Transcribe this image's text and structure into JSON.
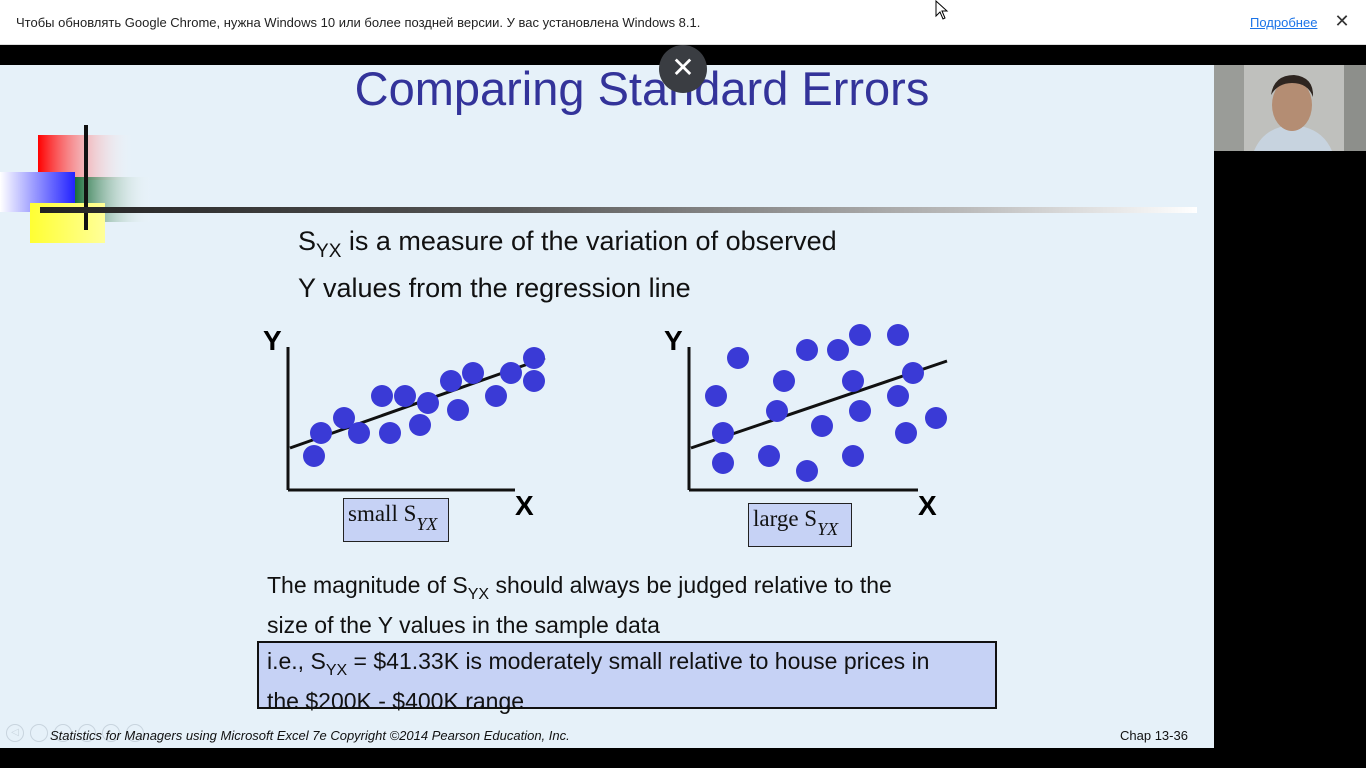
{
  "browser": {
    "infobar_message": "Чтобы обновлять Google Chrome, нужна Windows 10 или более поздней версии. У вас установлена Windows 8.1.",
    "infobar_link": "Подробнее",
    "infobar_close": "✕"
  },
  "overlay": {
    "close_symbol": "✕"
  },
  "slide": {
    "title": "Comparing Standard Errors",
    "intro_s": "S",
    "intro_sub": "YX",
    "intro_rest_line1": " is a measure of the variation of observed",
    "intro_line2": "Y values from the regression line",
    "chart_left_label_text": "small S",
    "chart_left_label_sub": "YX",
    "chart_right_label_text": "large S",
    "chart_right_label_sub": "YX",
    "axis_y": "Y",
    "axis_x": "X",
    "magnitude_pre": "The magnitude of S",
    "magnitude_sub": "YX",
    "magnitude_post": " should always be judged relative to the",
    "magnitude_line2": "size of the Y values in the sample data",
    "example_pre": "i.e., S",
    "example_sub": "YX",
    "example_post": " = $41.33K is moderately small relative to house prices in",
    "example_line2": "the $200K - $400K range",
    "footer": "Statistics for Managers using Microsoft Excel 7e Copyright ©2014 Pearson Education, Inc.",
    "page_number": "Chap 13-36"
  },
  "colors": {
    "title": "#33339a",
    "point": "#3a3ad6",
    "label_box": "#c6d2f5",
    "slide_bg": "#e6f1f9"
  }
}
